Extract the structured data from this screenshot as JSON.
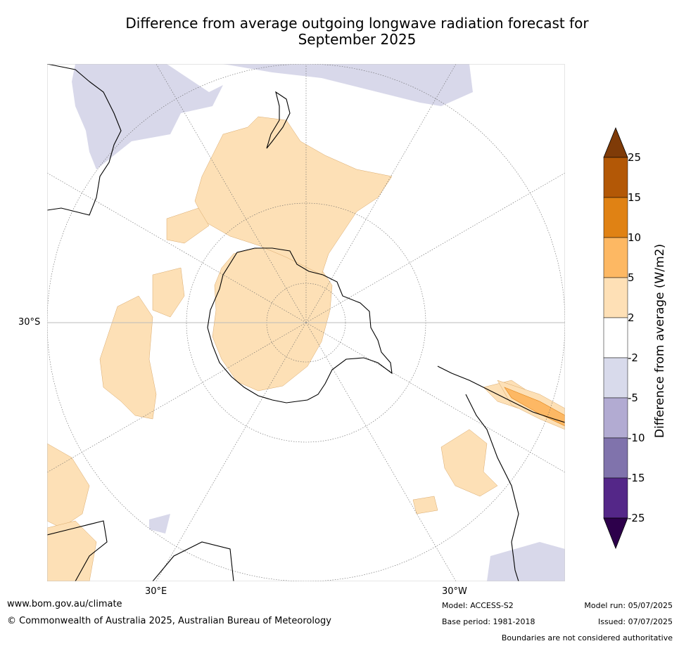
{
  "title_line1": "Difference from average outgoing longwave radiation forecast for",
  "title_line2": "September 2025",
  "map": {
    "projection": "south-polar-stereographic",
    "labels": {
      "lat_30s": "30°S",
      "lon_30e": "30°E",
      "lon_30w": "30°W"
    },
    "colors": {
      "band_2_5": "#fde0b6",
      "band_m2_m5": "#d8d8ea",
      "band_5_10": "#fdb864",
      "band_10_15": "#e08214",
      "band_15_25": "#b35806",
      "coast": "#000000",
      "grid": "#666666"
    }
  },
  "colorbar": {
    "title": "Difference from average (W/m2)",
    "ticks": [
      "25",
      "15",
      "10",
      "5",
      "2",
      "-2",
      "-5",
      "-10",
      "-15",
      "-25"
    ],
    "colors": [
      "#7f3b08",
      "#b35806",
      "#e08214",
      "#fdb863",
      "#fee0b6",
      "#ffffff",
      "#d8daeb",
      "#b2abd2",
      "#8073ac",
      "#542788",
      "#2d004b"
    ]
  },
  "footer": {
    "website": "www.bom.gov.au/climate",
    "copyright": "© Commonwealth of Australia 2025, Australian Bureau of Meteorology",
    "model": "Model: ACCESS-S2",
    "base_period": "Base period: 1981-2018",
    "model_run": "Model run: 05/07/2025",
    "issued": "Issued: 07/07/2025",
    "disclaimer": "Boundaries are not considered authoritative"
  }
}
